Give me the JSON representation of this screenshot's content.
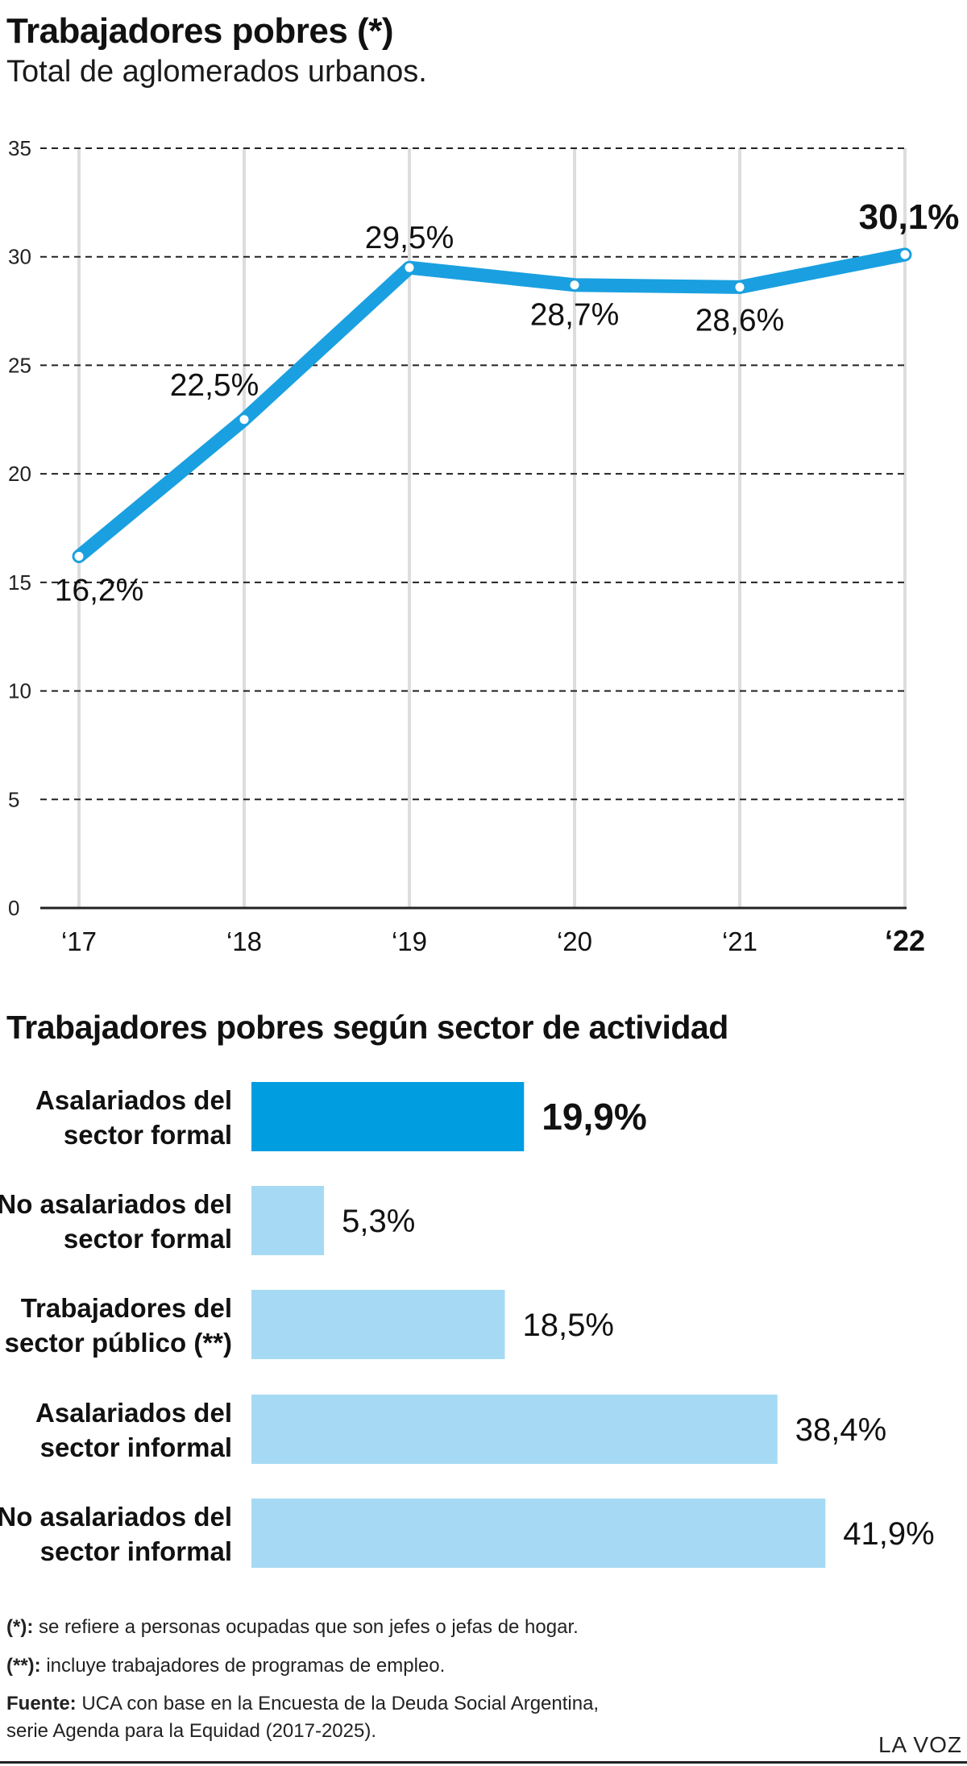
{
  "title": "Trabajadores pobres (*)",
  "subtitle": "Total de aglomerados urbanos.",
  "chart_data": [
    {
      "type": "line",
      "title": "Trabajadores pobres (*)",
      "subtitle": "Total de aglomerados urbanos.",
      "x": [
        "‘17",
        "‘18",
        "‘19",
        "‘20",
        "‘21",
        "‘22"
      ],
      "series": [
        {
          "values": [
            16.2,
            22.5,
            29.5,
            28.7,
            28.6,
            30.1
          ],
          "labels": [
            "16,2%",
            "22,5%",
            "29,5%",
            "28,7%",
            "28,6%",
            "30,1%"
          ]
        }
      ],
      "ylim": [
        0,
        35
      ],
      "yticks": [
        0,
        5,
        10,
        15,
        20,
        25,
        30,
        35
      ],
      "grid": "horizontal dashed, vertical solid",
      "colors": {
        "line": "#1aa0e0",
        "grid": "#222222",
        "vgrid": "#dddddd"
      }
    },
    {
      "type": "bar",
      "orientation": "horizontal",
      "title": "Trabajadores pobres según sector de actividad",
      "categories": [
        "Asalariados del sector formal",
        "No asalariados del sector formal",
        "Trabajadores del sector público (**)",
        "Asalariados del sector informal",
        "No asalariados del sector informal"
      ],
      "values": [
        19.9,
        5.3,
        18.5,
        38.4,
        41.9
      ],
      "labels": [
        "19,9%",
        "5,3%",
        "18,5%",
        "38,4%",
        "41,9%"
      ],
      "highlight_index": 0,
      "colors": {
        "highlight": "#009de0",
        "default": "#a6daf4"
      }
    }
  ],
  "section_title": "Trabajadores pobres según sector de actividad",
  "bar_label_lines": [
    [
      "Asalariados del",
      "sector formal"
    ],
    [
      "No asalariados del",
      "sector formal"
    ],
    [
      "Trabajadores del",
      "sector público (**)"
    ],
    [
      "Asalariados del",
      "sector informal"
    ],
    [
      "No asalariados del",
      "sector informal"
    ]
  ],
  "footnotes": {
    "note1_mark": "(*):",
    "note1_text": " se refiere a personas ocupadas que son jefes o jefas de hogar.",
    "note2_mark": "(**):",
    "note2_text": " incluye trabajadores de programas de empleo.",
    "source_mark": "Fuente:",
    "source_line1": " UCA con base en la Encuesta de la Deuda Social Argentina,",
    "source_line2": "serie Agenda para la Equidad (2017-2025)."
  },
  "brand": "LA VOZ"
}
